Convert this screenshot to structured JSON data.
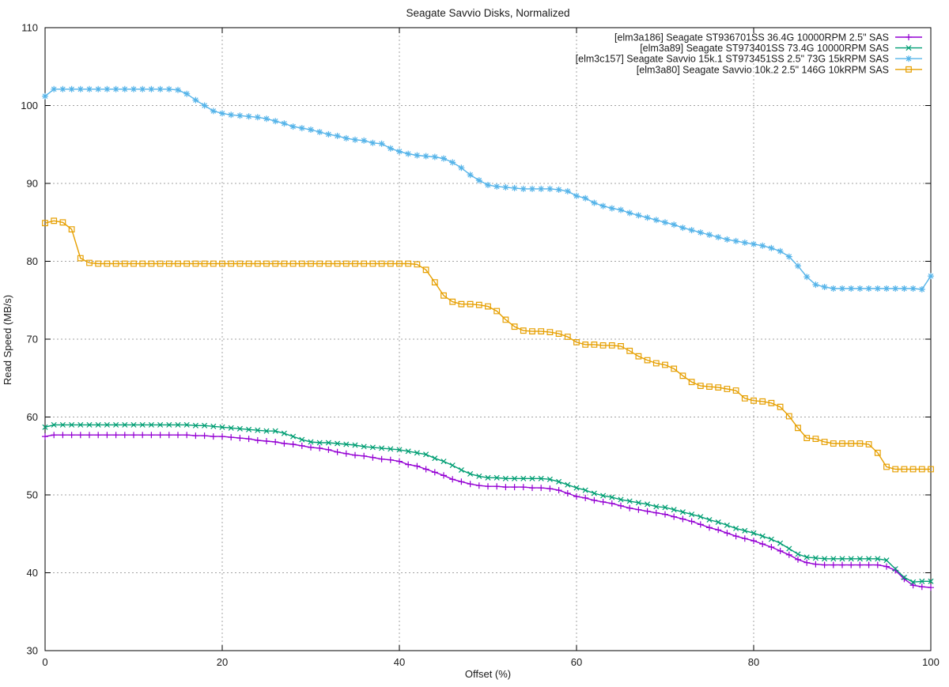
{
  "page": {
    "title": "Seagate Savvio Disks, Normalized"
  },
  "chart_data": {
    "type": "line",
    "title": "Seagate Savvio Disks, Normalized",
    "xlabel": "Offset (%)",
    "ylabel": "Read Speed (MB/s)",
    "xlim": [
      0,
      100
    ],
    "ylim": [
      30,
      110
    ],
    "xticks": [
      0,
      20,
      40,
      60,
      80,
      100
    ],
    "yticks": [
      30,
      40,
      50,
      60,
      70,
      80,
      90,
      100,
      110
    ],
    "grid": true,
    "legend_position": "top-right-inside",
    "grid_color": "#a3a3a3",
    "border_color": "#000000",
    "x_start": 0,
    "x_step": 1,
    "series": [
      {
        "name": "[elm3a186] Seagate ST936701SS 36.4G 10000RPM 2.5\" SAS",
        "color": "#9400d3",
        "marker": "plus",
        "values": [
          57.5,
          57.7,
          57.7,
          57.7,
          57.7,
          57.7,
          57.7,
          57.7,
          57.7,
          57.7,
          57.7,
          57.7,
          57.7,
          57.7,
          57.7,
          57.7,
          57.7,
          57.6,
          57.6,
          57.5,
          57.5,
          57.4,
          57.3,
          57.2,
          57.0,
          56.9,
          56.8,
          56.6,
          56.5,
          56.3,
          56.1,
          56.0,
          55.8,
          55.5,
          55.3,
          55.1,
          55.0,
          54.8,
          54.6,
          54.5,
          54.3,
          53.9,
          53.7,
          53.3,
          52.9,
          52.5,
          52.0,
          51.7,
          51.4,
          51.2,
          51.1,
          51.1,
          51.0,
          51.0,
          51.0,
          50.9,
          50.9,
          50.8,
          50.6,
          50.2,
          49.8,
          49.6,
          49.3,
          49.1,
          48.9,
          48.6,
          48.3,
          48.1,
          47.9,
          47.7,
          47.5,
          47.2,
          46.9,
          46.6,
          46.2,
          45.8,
          45.5,
          45.1,
          44.7,
          44.4,
          44.1,
          43.7,
          43.3,
          42.8,
          42.3,
          41.7,
          41.3,
          41.1,
          41.0,
          41.0,
          41.0,
          41.0,
          41.0,
          41.0,
          41.0,
          40.8,
          40.3,
          39.2,
          38.4,
          38.2,
          38.1
        ]
      },
      {
        "name": "[elm3a89] Seagate ST973401SS 73.4G 10000RPM SAS",
        "color": "#009e73",
        "marker": "cross",
        "values": [
          58.7,
          59.0,
          59.0,
          59.0,
          59.0,
          59.0,
          59.0,
          59.0,
          59.0,
          59.0,
          59.0,
          59.0,
          59.0,
          59.0,
          59.0,
          59.0,
          59.0,
          58.9,
          58.9,
          58.8,
          58.7,
          58.6,
          58.5,
          58.4,
          58.3,
          58.2,
          58.2,
          57.9,
          57.5,
          57.1,
          56.8,
          56.7,
          56.7,
          56.6,
          56.5,
          56.4,
          56.2,
          56.1,
          56.0,
          55.9,
          55.8,
          55.6,
          55.4,
          55.2,
          54.7,
          54.3,
          53.8,
          53.2,
          52.7,
          52.4,
          52.2,
          52.2,
          52.1,
          52.1,
          52.1,
          52.1,
          52.1,
          52.0,
          51.7,
          51.3,
          50.9,
          50.6,
          50.2,
          49.9,
          49.7,
          49.4,
          49.2,
          49.0,
          48.8,
          48.5,
          48.4,
          48.1,
          47.8,
          47.5,
          47.2,
          46.8,
          46.5,
          46.1,
          45.7,
          45.4,
          45.1,
          44.7,
          44.3,
          43.8,
          43.1,
          42.4,
          42.0,
          41.9,
          41.8,
          41.8,
          41.8,
          41.8,
          41.8,
          41.8,
          41.8,
          41.6,
          40.5,
          39.4,
          38.8,
          38.9,
          38.9
        ]
      },
      {
        "name": "[elm3c157] Seagate Savvio 15k.1 ST973451SS 2.5\" 73G 15kRPM SAS",
        "color": "#56b4e9",
        "marker": "asterisk",
        "values": [
          101.2,
          102.1,
          102.1,
          102.1,
          102.1,
          102.1,
          102.1,
          102.1,
          102.1,
          102.1,
          102.1,
          102.1,
          102.1,
          102.1,
          102.1,
          102.0,
          101.5,
          100.7,
          100.0,
          99.3,
          99.0,
          98.8,
          98.7,
          98.6,
          98.5,
          98.3,
          98.0,
          97.7,
          97.3,
          97.1,
          96.9,
          96.6,
          96.3,
          96.1,
          95.8,
          95.6,
          95.5,
          95.2,
          95.1,
          94.5,
          94.1,
          93.8,
          93.6,
          93.5,
          93.4,
          93.2,
          92.7,
          92.0,
          91.1,
          90.4,
          89.8,
          89.6,
          89.5,
          89.4,
          89.3,
          89.3,
          89.3,
          89.3,
          89.2,
          89.0,
          88.4,
          88.1,
          87.5,
          87.1,
          86.8,
          86.6,
          86.2,
          85.9,
          85.6,
          85.3,
          85.0,
          84.7,
          84.3,
          84.0,
          83.7,
          83.4,
          83.1,
          82.8,
          82.6,
          82.4,
          82.2,
          82.0,
          81.7,
          81.3,
          80.6,
          79.4,
          78.0,
          77.0,
          76.7,
          76.5,
          76.5,
          76.5,
          76.5,
          76.5,
          76.5,
          76.5,
          76.5,
          76.5,
          76.5,
          76.4,
          78.1
        ]
      },
      {
        "name": "[elm3a80] Seagate Savvio 10k.2 2.5\" 146G 10kRPM SAS",
        "color": "#e69f00",
        "marker": "square",
        "values": [
          84.9,
          85.2,
          85.0,
          84.1,
          80.4,
          79.8,
          79.7,
          79.7,
          79.7,
          79.7,
          79.7,
          79.7,
          79.7,
          79.7,
          79.7,
          79.7,
          79.7,
          79.7,
          79.7,
          79.7,
          79.7,
          79.7,
          79.7,
          79.7,
          79.7,
          79.7,
          79.7,
          79.7,
          79.7,
          79.7,
          79.7,
          79.7,
          79.7,
          79.7,
          79.7,
          79.7,
          79.7,
          79.7,
          79.7,
          79.7,
          79.7,
          79.7,
          79.6,
          78.9,
          77.3,
          75.6,
          74.8,
          74.5,
          74.5,
          74.4,
          74.2,
          73.6,
          72.5,
          71.6,
          71.1,
          71.0,
          71.0,
          70.9,
          70.7,
          70.3,
          69.6,
          69.3,
          69.3,
          69.2,
          69.2,
          69.1,
          68.5,
          67.8,
          67.3,
          66.9,
          66.7,
          66.2,
          65.3,
          64.5,
          64.0,
          63.9,
          63.8,
          63.6,
          63.4,
          62.4,
          62.1,
          62.0,
          61.8,
          61.3,
          60.1,
          58.6,
          57.3,
          57.2,
          56.8,
          56.6,
          56.6,
          56.6,
          56.6,
          56.5,
          55.4,
          53.6,
          53.3,
          53.3,
          53.3,
          53.3,
          53.3
        ]
      }
    ]
  }
}
